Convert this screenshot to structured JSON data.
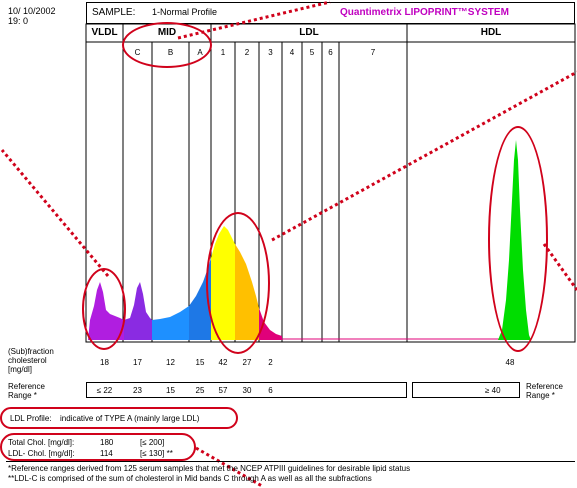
{
  "header": {
    "date": "10/ 10/2002",
    "run_code": "19:  0",
    "sample_label": "SAMPLE:",
    "sample_name": "1-Normal Profile",
    "brand": "Quantimetrix LIPOPRINT™SYSTEM"
  },
  "bands": {
    "vldl": "VLDL",
    "mid": "MID",
    "mid_sub": [
      "C",
      "B",
      "A"
    ],
    "ldl": "LDL",
    "ldl_sub": [
      "1",
      "2",
      "3",
      "4",
      "5",
      "6",
      "7"
    ],
    "hdl": "HDL"
  },
  "subfraction": {
    "label_line1": "(Sub)fraction",
    "label_line2": "cholesterol",
    "label_line3": "[mg/dl]",
    "values": [
      "18",
      "17",
      "12",
      "15",
      "42",
      "27",
      "2"
    ],
    "hdl_value": "48"
  },
  "reference": {
    "label_line1": "Reference",
    "label_line2": "Range *",
    "values": [
      "≤  22",
      "23",
      "15",
      "25",
      "57",
      "30",
      "6"
    ],
    "hdl_value": "≥  40",
    "right_label_line1": "Reference",
    "right_label_line2": "Range *"
  },
  "profile": {
    "label": "LDL Profile:",
    "value": "indicative of TYPE A  (mainly large LDL)"
  },
  "totals": {
    "total_chol_label": "Total Chol. [mg/dl]:",
    "total_chol_value": "180",
    "total_chol_range": "[≤ 200]",
    "ldl_chol_label": "LDL- Chol. [mg/dl]:",
    "ldl_chol_value": "114",
    "ldl_chol_range": "[≤ 130] **"
  },
  "footnotes": {
    "line1": "*Reference ranges derived from 125 serum samples that met the NCEP ATPIII guidelines for desirable lipid status",
    "line2": "**LDL-C is comprised of the sum of cholesterol in Mid bands C through A as well as all the subfractions"
  },
  "colors": {
    "annotation": "#d0021b",
    "brand": "#c000c0",
    "vldl": "#b01ee0",
    "mid_c": "#8a2be2",
    "mid_b": "#1e90ff",
    "mid_a": "#1e78e6",
    "ldl1": "#ffff00",
    "ldl2": "#ffc000",
    "ldl3": "#e0007a",
    "hdl": "#00dd00"
  }
}
